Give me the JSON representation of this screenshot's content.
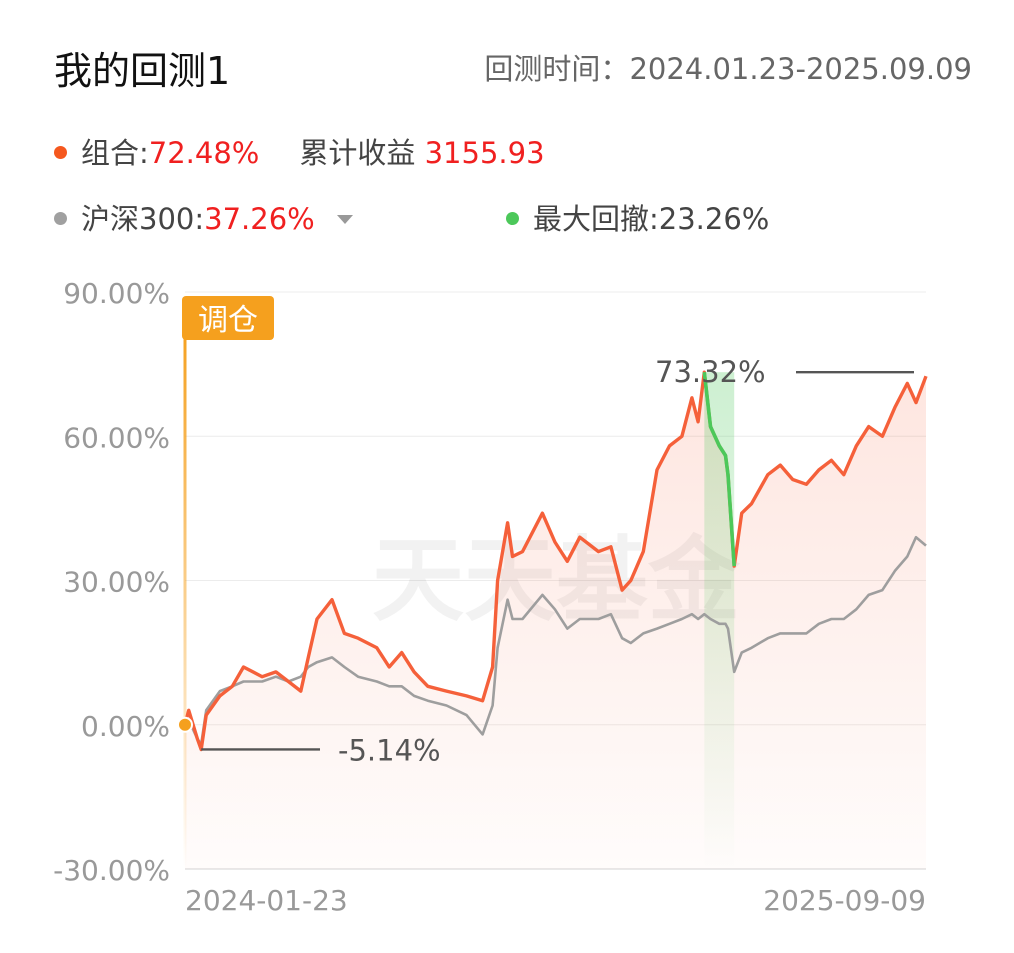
{
  "header": {
    "title": "我的回测1",
    "period_label": "回测时间：",
    "period_value": "2024.01.23-2025.09.09"
  },
  "legend": {
    "portfolio_label": "组合:",
    "portfolio_return": "72.48%",
    "cum_label": "累计收益",
    "cum_value": "3155.93",
    "benchmark_label": "沪深300:",
    "benchmark_return": "37.26%",
    "mdd_label": "最大回撤:",
    "mdd_value": "23.26%"
  },
  "colors": {
    "portfolio": "#f5603a",
    "benchmark": "#9e9e9e",
    "drawdown": "#4cc85a",
    "rebalance": "#f5a01e",
    "portfolio_dot": "#f5581e",
    "benchmark_dot": "#a0a0a0"
  },
  "chart_data": {
    "type": "line",
    "ylim": [
      -30,
      90
    ],
    "y_ticks": [
      "90.00%",
      "60.00%",
      "30.00%",
      "0.00%",
      "-30.00%"
    ],
    "y_tick_values": [
      90,
      60,
      30,
      0,
      -30
    ],
    "x_range": [
      "2024-01-23",
      "2025-09-09"
    ],
    "x_tick_labels": [
      "2024-01-23",
      "2025-09-09"
    ],
    "grid": true,
    "watermark": "天天基金",
    "annotations": {
      "rebalance_label": "调仓",
      "rebalance_date": "2024-01-23",
      "max_label": "73.32%",
      "max_value": 73.32,
      "max_date": "2025-03-15",
      "min_label": "-5.14%",
      "min_value": -5.14,
      "min_date": "2024-02-05",
      "drawdown_start": "2025-03-15",
      "drawdown_end": "2025-04-08"
    },
    "series": [
      {
        "name": "组合",
        "points": [
          [
            "2024-01-23",
            0
          ],
          [
            "2024-01-26",
            3
          ],
          [
            "2024-02-02",
            -3
          ],
          [
            "2024-02-05",
            -5.14
          ],
          [
            "2024-02-09",
            2
          ],
          [
            "2024-02-20",
            6
          ],
          [
            "2024-03-01",
            8
          ],
          [
            "2024-03-10",
            12
          ],
          [
            "2024-03-25",
            10
          ],
          [
            "2024-04-05",
            11
          ],
          [
            "2024-04-15",
            9
          ],
          [
            "2024-04-25",
            7
          ],
          [
            "2024-05-01",
            14
          ],
          [
            "2024-05-08",
            22
          ],
          [
            "2024-05-20",
            26
          ],
          [
            "2024-05-30",
            19
          ],
          [
            "2024-06-10",
            18
          ],
          [
            "2024-06-25",
            16
          ],
          [
            "2024-07-05",
            12
          ],
          [
            "2024-07-15",
            15
          ],
          [
            "2024-07-25",
            11
          ],
          [
            "2024-08-05",
            8
          ],
          [
            "2024-08-20",
            7
          ],
          [
            "2024-09-05",
            6
          ],
          [
            "2024-09-18",
            5
          ],
          [
            "2024-09-26",
            12
          ],
          [
            "2024-09-30",
            30
          ],
          [
            "2024-10-08",
            42
          ],
          [
            "2024-10-12",
            35
          ],
          [
            "2024-10-20",
            36
          ],
          [
            "2024-11-05",
            44
          ],
          [
            "2024-11-15",
            38
          ],
          [
            "2024-11-25",
            34
          ],
          [
            "2024-12-05",
            39
          ],
          [
            "2024-12-20",
            36
          ],
          [
            "2024-12-30",
            37
          ],
          [
            "2025-01-08",
            28
          ],
          [
            "2025-01-15",
            30
          ],
          [
            "2025-01-25",
            36
          ],
          [
            "2025-02-05",
            53
          ],
          [
            "2025-02-15",
            58
          ],
          [
            "2025-02-25",
            60
          ],
          [
            "2025-03-05",
            68
          ],
          [
            "2025-03-10",
            63
          ],
          [
            "2025-03-15",
            73.32
          ],
          [
            "2025-03-20",
            62
          ],
          [
            "2025-03-27",
            58
          ],
          [
            "2025-04-01",
            56
          ],
          [
            "2025-04-03",
            52
          ],
          [
            "2025-04-08",
            33
          ],
          [
            "2025-04-14",
            44
          ],
          [
            "2025-04-22",
            46
          ],
          [
            "2025-05-05",
            52
          ],
          [
            "2025-05-15",
            54
          ],
          [
            "2025-05-25",
            51
          ],
          [
            "2025-06-05",
            50
          ],
          [
            "2025-06-15",
            53
          ],
          [
            "2025-06-25",
            55
          ],
          [
            "2025-07-05",
            52
          ],
          [
            "2025-07-15",
            58
          ],
          [
            "2025-07-25",
            62
          ],
          [
            "2025-08-05",
            60
          ],
          [
            "2025-08-15",
            66
          ],
          [
            "2025-08-25",
            71
          ],
          [
            "2025-09-01",
            67
          ],
          [
            "2025-09-09",
            72.48
          ]
        ]
      },
      {
        "name": "沪深300",
        "points": [
          [
            "2024-01-23",
            0
          ],
          [
            "2024-01-26",
            1
          ],
          [
            "2024-02-02",
            -3
          ],
          [
            "2024-02-05",
            -4
          ],
          [
            "2024-02-09",
            3
          ],
          [
            "2024-02-20",
            7
          ],
          [
            "2024-03-01",
            8
          ],
          [
            "2024-03-10",
            9
          ],
          [
            "2024-03-25",
            9
          ],
          [
            "2024-04-05",
            10
          ],
          [
            "2024-04-15",
            9
          ],
          [
            "2024-04-25",
            10
          ],
          [
            "2024-05-01",
            12
          ],
          [
            "2024-05-08",
            13
          ],
          [
            "2024-05-20",
            14
          ],
          [
            "2024-05-30",
            12
          ],
          [
            "2024-06-10",
            10
          ],
          [
            "2024-06-25",
            9
          ],
          [
            "2024-07-05",
            8
          ],
          [
            "2024-07-15",
            8
          ],
          [
            "2024-07-25",
            6
          ],
          [
            "2024-08-05",
            5
          ],
          [
            "2024-08-20",
            4
          ],
          [
            "2024-09-05",
            2
          ],
          [
            "2024-09-18",
            -2
          ],
          [
            "2024-09-26",
            4
          ],
          [
            "2024-09-30",
            16
          ],
          [
            "2024-10-08",
            26
          ],
          [
            "2024-10-12",
            22
          ],
          [
            "2024-10-20",
            22
          ],
          [
            "2024-11-05",
            27
          ],
          [
            "2024-11-15",
            24
          ],
          [
            "2024-11-25",
            20
          ],
          [
            "2024-12-05",
            22
          ],
          [
            "2024-12-20",
            22
          ],
          [
            "2024-12-30",
            23
          ],
          [
            "2025-01-08",
            18
          ],
          [
            "2025-01-15",
            17
          ],
          [
            "2025-01-25",
            19
          ],
          [
            "2025-02-05",
            20
          ],
          [
            "2025-02-15",
            21
          ],
          [
            "2025-02-25",
            22
          ],
          [
            "2025-03-05",
            23
          ],
          [
            "2025-03-10",
            22
          ],
          [
            "2025-03-15",
            23
          ],
          [
            "2025-03-20",
            22
          ],
          [
            "2025-03-27",
            21
          ],
          [
            "2025-04-01",
            21
          ],
          [
            "2025-04-03",
            20
          ],
          [
            "2025-04-08",
            11
          ],
          [
            "2025-04-14",
            15
          ],
          [
            "2025-04-22",
            16
          ],
          [
            "2025-05-05",
            18
          ],
          [
            "2025-05-15",
            19
          ],
          [
            "2025-05-25",
            19
          ],
          [
            "2025-06-05",
            19
          ],
          [
            "2025-06-15",
            21
          ],
          [
            "2025-06-25",
            22
          ],
          [
            "2025-07-05",
            22
          ],
          [
            "2025-07-15",
            24
          ],
          [
            "2025-07-25",
            27
          ],
          [
            "2025-08-05",
            28
          ],
          [
            "2025-08-15",
            32
          ],
          [
            "2025-08-25",
            35
          ],
          [
            "2025-09-01",
            39
          ],
          [
            "2025-09-09",
            37.26
          ]
        ]
      }
    ]
  }
}
